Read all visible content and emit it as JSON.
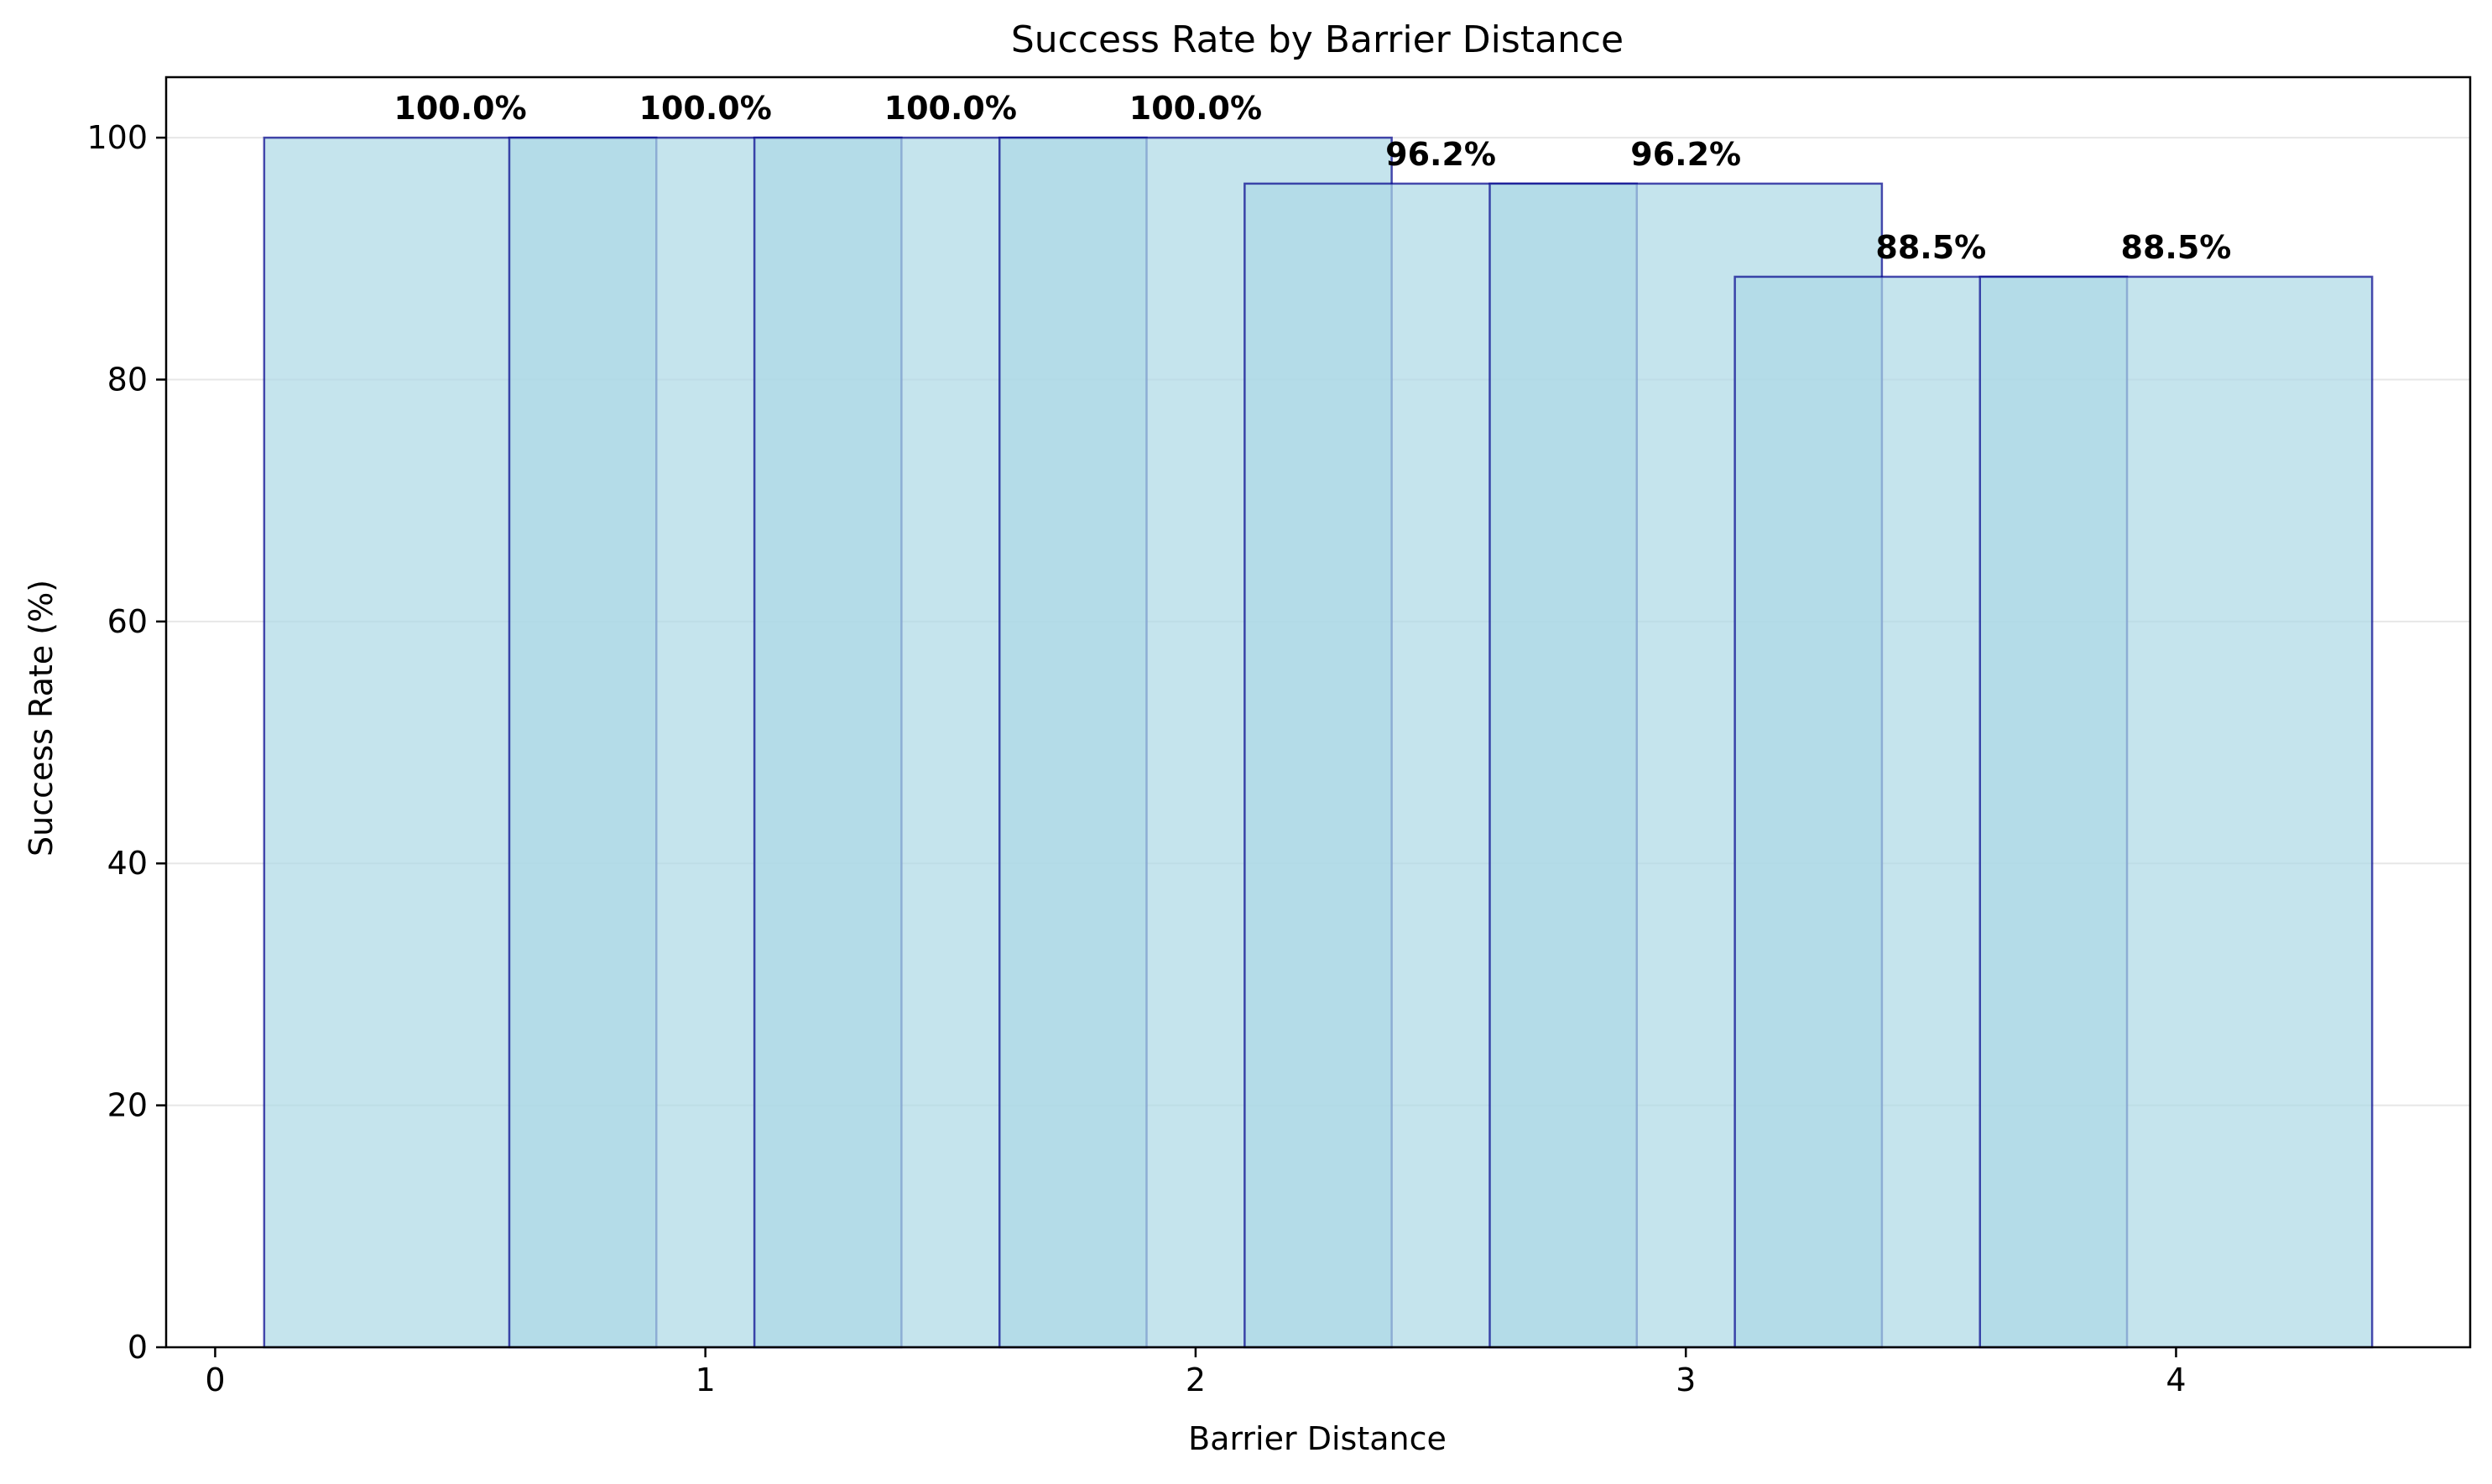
{
  "chart_data": {
    "type": "bar",
    "title": "Success Rate by Barrier Distance",
    "xlabel": "Barrier Distance",
    "ylabel": "Success Rate (%)",
    "xlim": [
      -0.1,
      4.6
    ],
    "ylim": [
      0,
      105
    ],
    "xticks": [
      0,
      1,
      2,
      3,
      4
    ],
    "yticks": [
      0,
      20,
      40,
      60,
      80,
      100
    ],
    "grid": {
      "y": true,
      "x": false
    },
    "bar_width": 0.8,
    "bars": [
      {
        "x": 0.5,
        "value": 100.0,
        "label": "100.0%"
      },
      {
        "x": 1.0,
        "value": 100.0,
        "label": "100.0%"
      },
      {
        "x": 1.5,
        "value": 100.0,
        "label": "100.0%"
      },
      {
        "x": 2.0,
        "value": 100.0,
        "label": "100.0%"
      },
      {
        "x": 2.5,
        "value": 96.2,
        "label": "96.2%"
      },
      {
        "x": 3.0,
        "value": 96.2,
        "label": "96.2%"
      },
      {
        "x": 3.5,
        "value": 88.5,
        "label": "88.5%"
      },
      {
        "x": 4.0,
        "value": 88.5,
        "label": "88.5%"
      }
    ],
    "colors": {
      "bar_fill": "#add8e6",
      "bar_fill_opacity": 0.7,
      "bar_edge": "#00008b",
      "bar_edge_opacity": 0.7,
      "grid": "#dddddd",
      "axis": "#000000",
      "text": "#000000"
    }
  }
}
